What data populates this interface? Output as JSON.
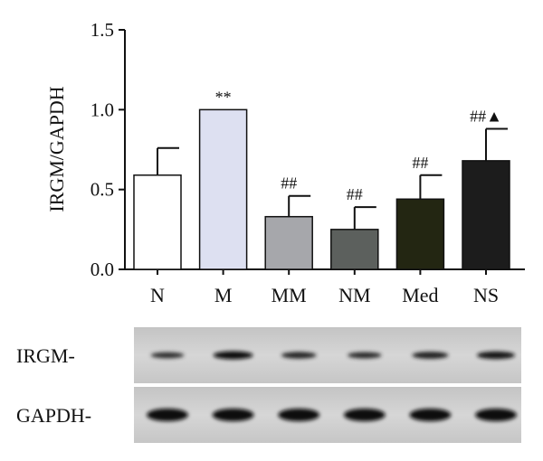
{
  "chart_data": {
    "type": "bar",
    "ylabel": "IRGM/GAPDH",
    "ylim": [
      0,
      1.5
    ],
    "yticks": [
      "0.0",
      "0.5",
      "1.0",
      "1.5"
    ],
    "categories": [
      "N",
      "M",
      "MM",
      "NM",
      "Med",
      "NS"
    ],
    "values": [
      0.59,
      1.0,
      0.33,
      0.25,
      0.44,
      0.68
    ],
    "error": [
      0.17,
      0.0,
      0.13,
      0.14,
      0.15,
      0.2
    ],
    "annotations": [
      "",
      "**",
      "##",
      "##",
      "##",
      "##▲"
    ],
    "bar_colors": [
      "#ffffff",
      "#dde0f1",
      "#a6a7ab",
      "#5c605d",
      "#232612",
      "#1c1c1c"
    ],
    "grid": false,
    "legend": "none"
  },
  "blot": {
    "rows": [
      {
        "label": "IRGM-",
        "band_intensity": [
          0.45,
          1.0,
          0.6,
          0.5,
          0.7,
          0.85
        ]
      },
      {
        "label": "GAPDH-",
        "band_intensity": [
          1.0,
          1.0,
          1.0,
          1.0,
          1.0,
          1.0
        ]
      }
    ]
  }
}
